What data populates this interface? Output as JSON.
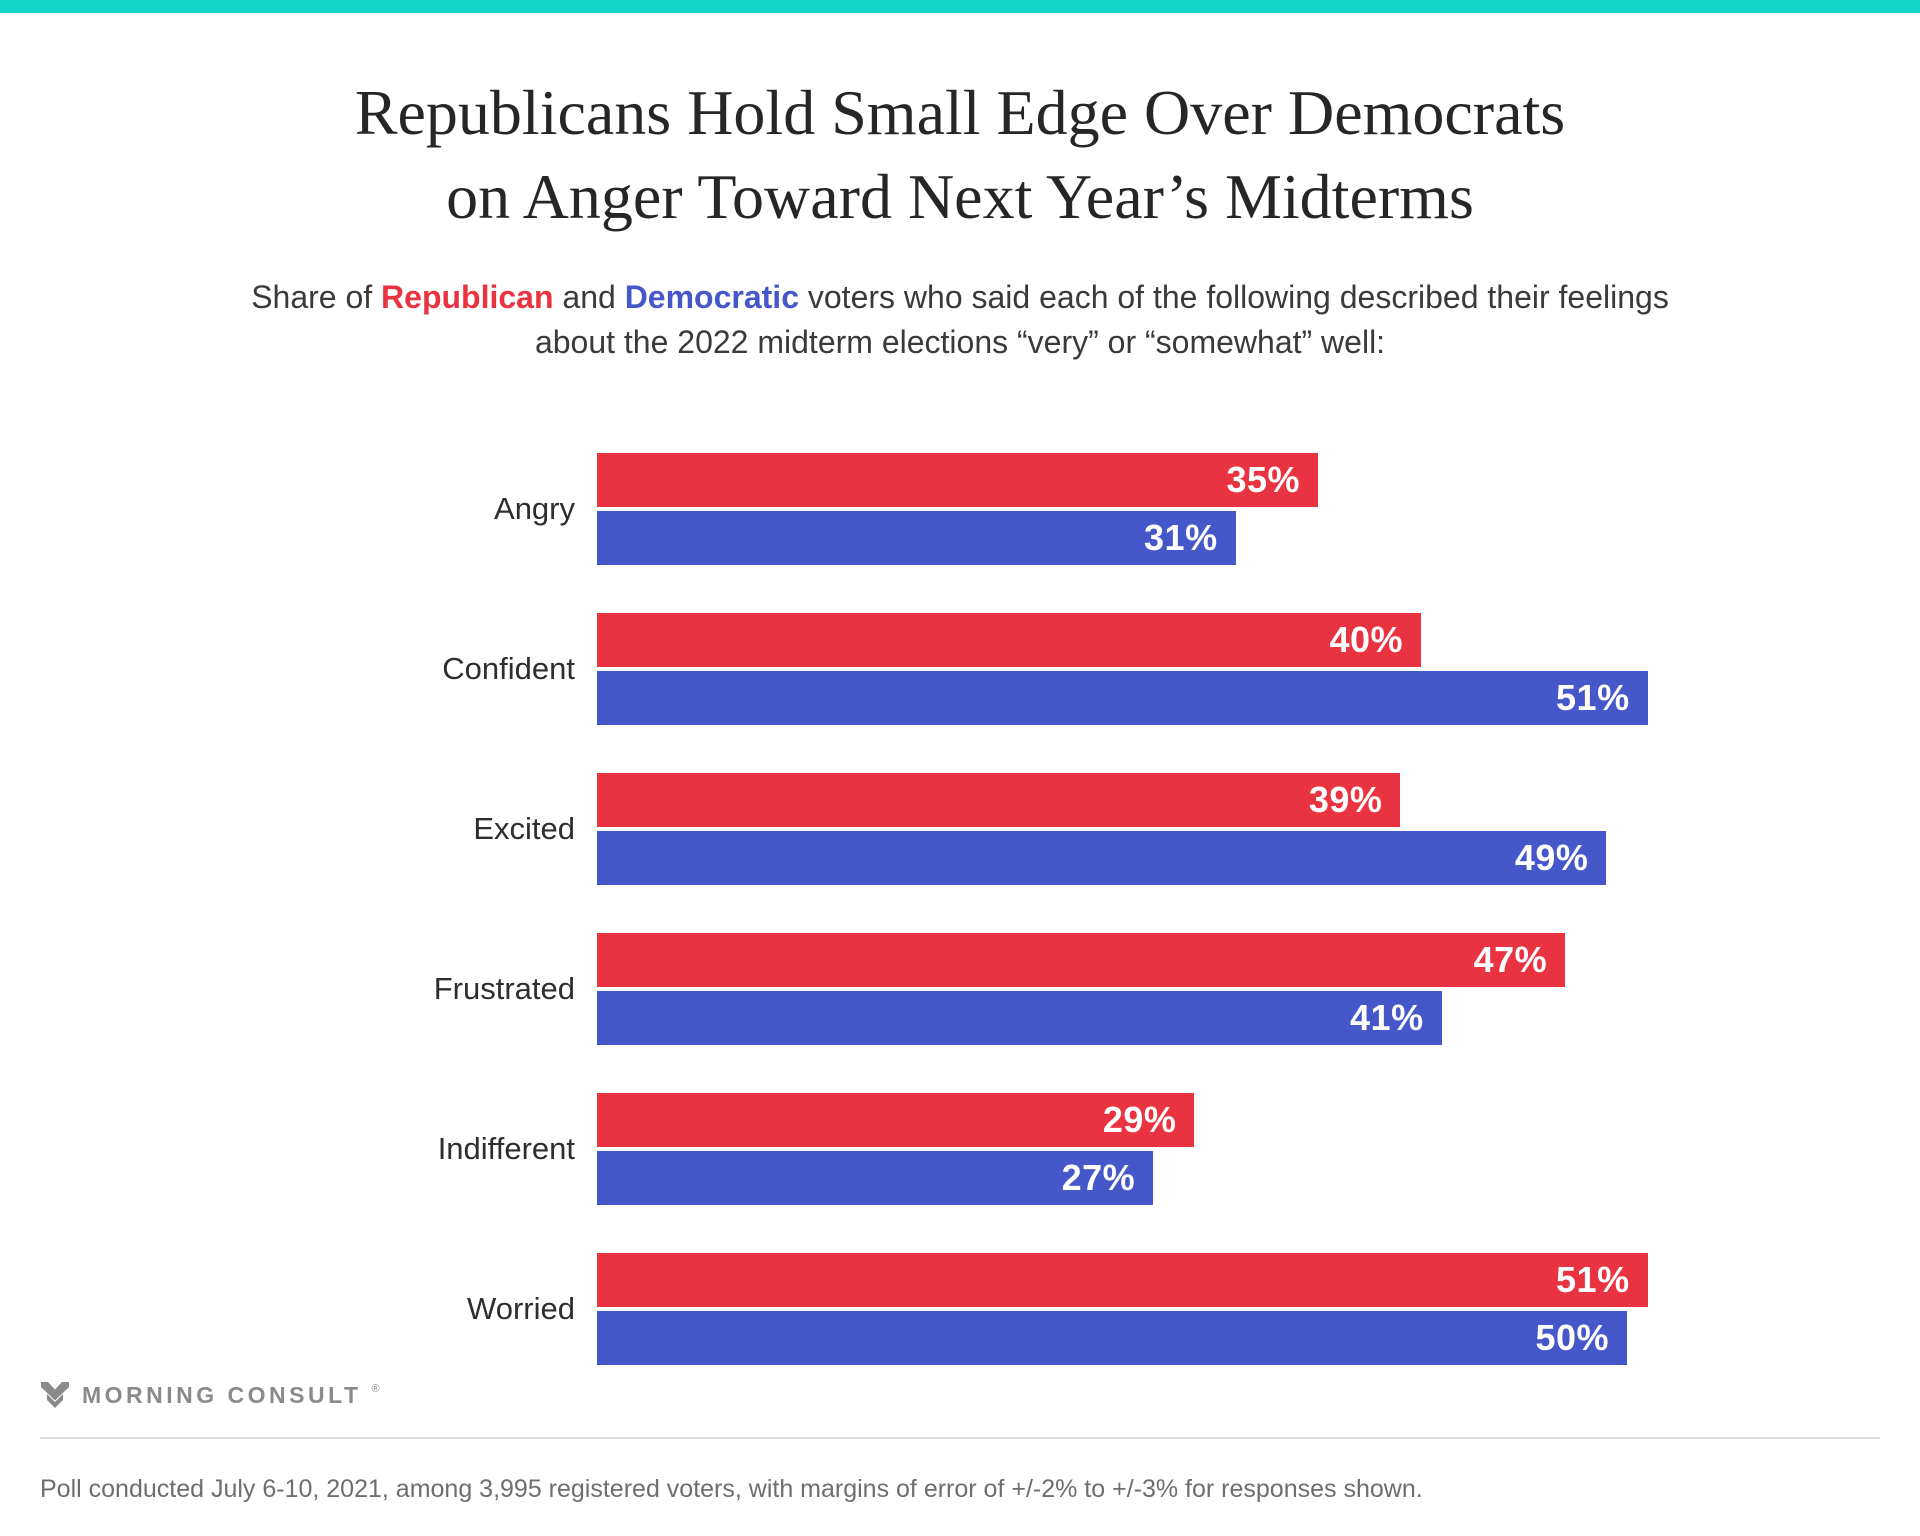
{
  "brand": {
    "accent_color": "#11d3c7",
    "logo_text": "MORNING CONSULT",
    "registered_mark": "®"
  },
  "header": {
    "title_line1": "Republicans Hold Small Edge Over Democrats",
    "title_line2": "on Anger Toward Next Year’s Midterms",
    "subtitle_prefix": "Share of",
    "republican_word": "Republican",
    "subtitle_mid": "and",
    "democratic_word": "Democratic",
    "subtitle_suffix": "voters who said each of the following described their feelings about the 2022 midterm elections “very” or “somewhat” well:"
  },
  "chart_data": {
    "type": "bar",
    "orientation": "horizontal",
    "categories": [
      "Angry",
      "Confident",
      "Excited",
      "Frustrated",
      "Indifferent",
      "Worried"
    ],
    "series": [
      {
        "name": "Republican",
        "color": "#e93340",
        "values": [
          35,
          40,
          39,
          47,
          29,
          51
        ]
      },
      {
        "name": "Democratic",
        "color": "#4557c9",
        "values": [
          31,
          51,
          49,
          41,
          27,
          50
        ]
      }
    ],
    "value_suffix": "%",
    "value_labels": "inside-end",
    "xlim": [
      0,
      51
    ],
    "grid": false,
    "legend": "none"
  },
  "footer": {
    "footnote": "Poll conducted July 6-10, 2021, among 3,995 registered voters, with margins of error of +/-2% to +/-3% for responses shown."
  }
}
